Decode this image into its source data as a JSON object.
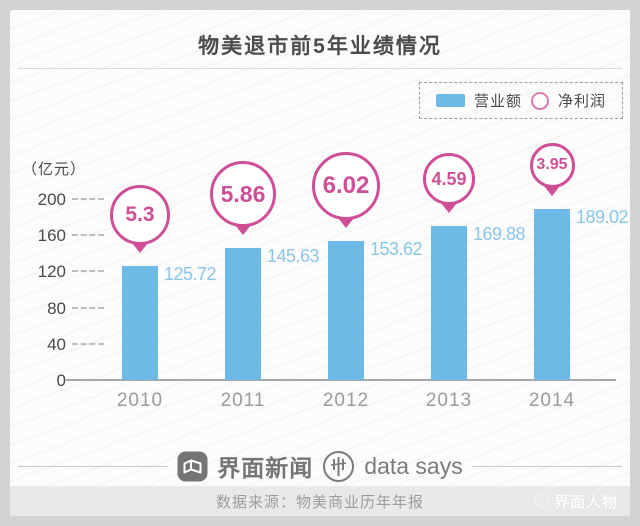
{
  "page": {
    "title": "物美退市前5年业绩情况",
    "source_note": "数据来源：物美商业历年年报",
    "watermark": "界面人物"
  },
  "legend": {
    "revenue_label": "营业额",
    "profit_label": "净利润"
  },
  "footer": {
    "brand1": "界面新闻",
    "brand2": "data says"
  },
  "chart_data": {
    "type": "bar",
    "title": "物美退市前5年业绩情况",
    "unit_label": "（亿元）",
    "categories": [
      "2010",
      "2011",
      "2012",
      "2013",
      "2014"
    ],
    "series": [
      {
        "name": "营业额",
        "type": "bar",
        "values": [
          125.72,
          145.63,
          153.62,
          169.88,
          189.02
        ]
      },
      {
        "name": "净利润",
        "type": "bubble",
        "values": [
          5.3,
          5.86,
          6.02,
          4.59,
          3.95
        ]
      }
    ],
    "y_ticks": [
      0,
      40,
      80,
      120,
      160,
      200
    ],
    "ylim": [
      0,
      200
    ],
    "grid": "tick-stubs-only",
    "legend_position": "top-right",
    "colors": {
      "bar": "#6fb9e6",
      "bar_label": "#8ac6ea",
      "bubble": "#ce4f97",
      "axis_text": "#4a4a4a",
      "year_text": "#9b9b9b"
    }
  }
}
